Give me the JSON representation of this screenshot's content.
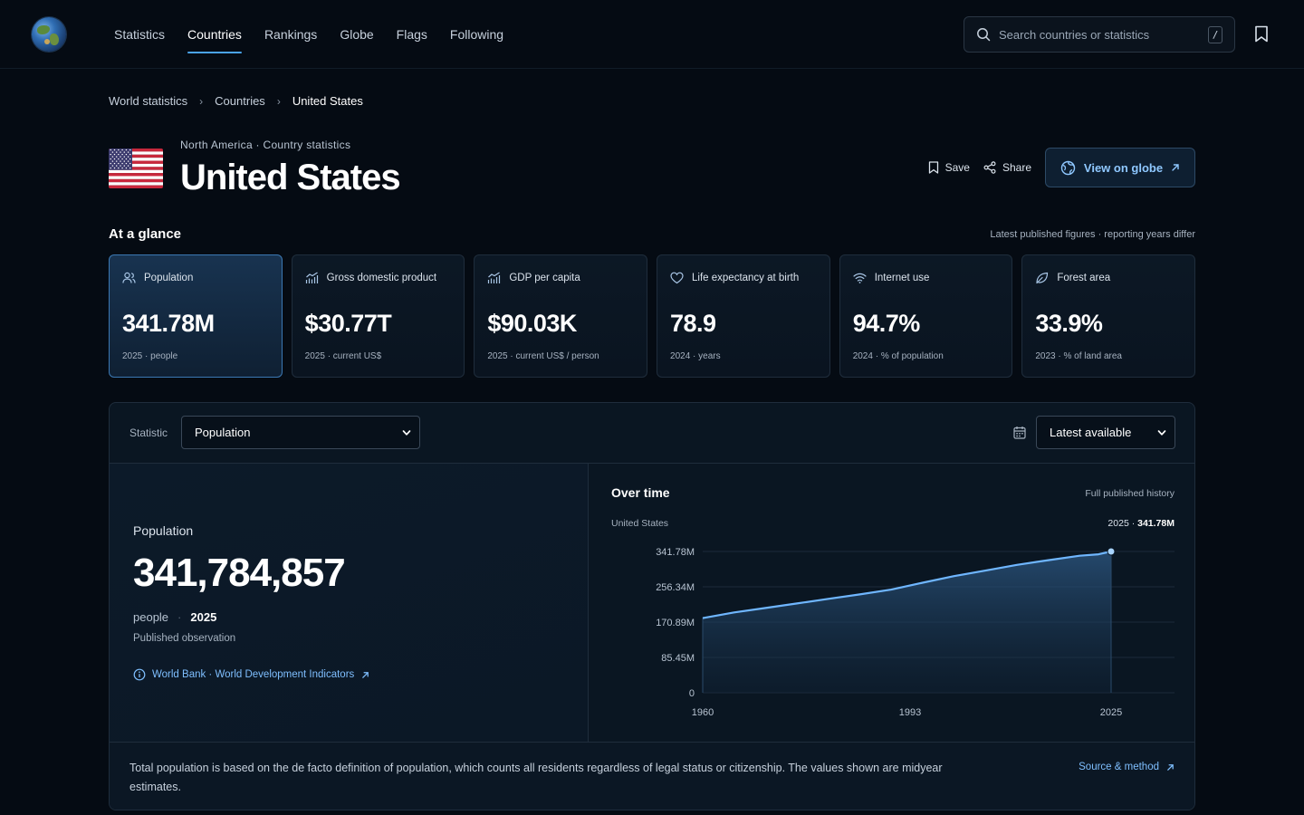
{
  "nav": {
    "links": [
      "Statistics",
      "Countries",
      "Rankings",
      "Globe",
      "Flags",
      "Following"
    ],
    "active": "Countries",
    "search_placeholder": "Search countries or statistics",
    "search_shortcut": "/"
  },
  "breadcrumb": [
    "World statistics",
    "Countries",
    "United States"
  ],
  "header": {
    "subtitle": "North America · Country statistics",
    "title": "United States",
    "save": "Save",
    "share": "Share",
    "view_globe": "View on globe"
  },
  "glance": {
    "title": "At a glance",
    "note": "Latest published figures · reporting years differ",
    "cards": [
      {
        "label": "Population",
        "value": "341.78M",
        "sub": "2025 · people",
        "icon": "people-icon"
      },
      {
        "label": "Gross domestic product",
        "value": "$30.77T",
        "sub": "2025 · current US$",
        "icon": "bar-chart-icon"
      },
      {
        "label": "GDP per capita",
        "value": "$90.03K",
        "sub": "2025 · current US$ / person",
        "icon": "bar-chart-icon"
      },
      {
        "label": "Life expectancy at birth",
        "value": "78.9",
        "sub": "2024 · years",
        "icon": "heart-icon"
      },
      {
        "label": "Internet use",
        "value": "94.7%",
        "sub": "2024 · % of population",
        "icon": "wifi-icon"
      },
      {
        "label": "Forest area",
        "value": "33.9%",
        "sub": "2023 · % of land area",
        "icon": "leaf-icon"
      }
    ]
  },
  "panel": {
    "statistic_label": "Statistic",
    "statistic_value": "Population",
    "period_value": "Latest available",
    "detail": {
      "label": "Population",
      "value": "341,784,857",
      "unit": "people",
      "year": "2025",
      "observation": "Published observation",
      "source": "World Bank · World Development Indicators"
    },
    "over_time": {
      "title": "Over time",
      "note": "Full published history",
      "country": "United States",
      "latest_year": "2025",
      "latest_value": "341.78M"
    },
    "footnote": "Total population is based on the de facto definition of population, which counts all residents regardless of legal status or citizenship. The values shown are midyear estimates.",
    "source_link": "Source & method"
  },
  "colors": {
    "accent": "#4aa3ee",
    "line": "#6fb6ff",
    "link": "#7fbfff"
  },
  "chart_data": {
    "type": "area",
    "x": [
      1960,
      1965,
      1970,
      1975,
      1980,
      1985,
      1990,
      1995,
      2000,
      2005,
      2010,
      2015,
      2020,
      2023,
      2025
    ],
    "series": [
      {
        "name": "United States",
        "values": [
          180.67,
          194.3,
          205.05,
          215.97,
          227.23,
          237.92,
          249.62,
          266.28,
          282.16,
          295.52,
          309.33,
          320.74,
          331.51,
          334.91,
          341.78
        ]
      }
    ],
    "x_ticks": [
      "1960",
      "1993",
      "2025"
    ],
    "y_ticks": [
      "0",
      "85.45M",
      "170.89M",
      "256.34M",
      "341.78M"
    ],
    "ylim": [
      0,
      341.78
    ],
    "xlim": [
      1960,
      2025
    ],
    "unit": "millions",
    "grid": true
  }
}
